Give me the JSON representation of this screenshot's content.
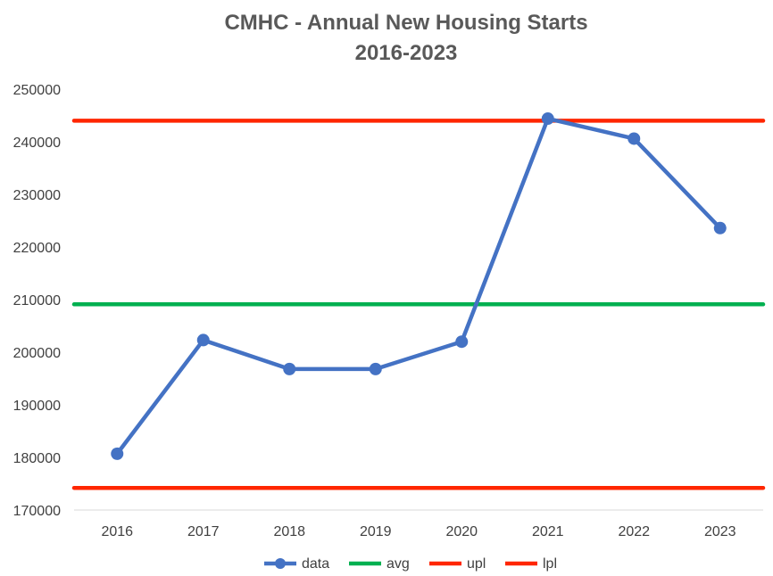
{
  "chart_data": {
    "type": "line",
    "title": "CMHC - Annual New Housing Starts",
    "subtitle": "2016-2023",
    "categories": [
      "2016",
      "2017",
      "2018",
      "2019",
      "2020",
      "2021",
      "2022",
      "2023"
    ],
    "yticks": [
      "170000",
      "180000",
      "190000",
      "200000",
      "210000",
      "220000",
      "230000",
      "240000",
      "250000"
    ],
    "ylim": [
      170000,
      250000
    ],
    "grid": false,
    "legend_position": "bottom",
    "series": [
      {
        "name": "data",
        "color": "#4472C4",
        "markers": true,
        "values": [
          180700,
          202300,
          196800,
          196800,
          202000,
          244400,
          240600,
          223600
        ]
      },
      {
        "name": "avg",
        "color": "#00B050",
        "markers": false,
        "values": [
          209100,
          209100,
          209100,
          209100,
          209100,
          209100,
          209100,
          209100
        ]
      },
      {
        "name": "upl",
        "color": "#FF2600",
        "markers": false,
        "values": [
          244000,
          244000,
          244000,
          244000,
          244000,
          244000,
          244000,
          244000
        ]
      },
      {
        "name": "lpl",
        "color": "#FF2600",
        "markers": false,
        "values": [
          174200,
          174200,
          174200,
          174200,
          174200,
          174200,
          174200,
          174200
        ]
      }
    ]
  }
}
